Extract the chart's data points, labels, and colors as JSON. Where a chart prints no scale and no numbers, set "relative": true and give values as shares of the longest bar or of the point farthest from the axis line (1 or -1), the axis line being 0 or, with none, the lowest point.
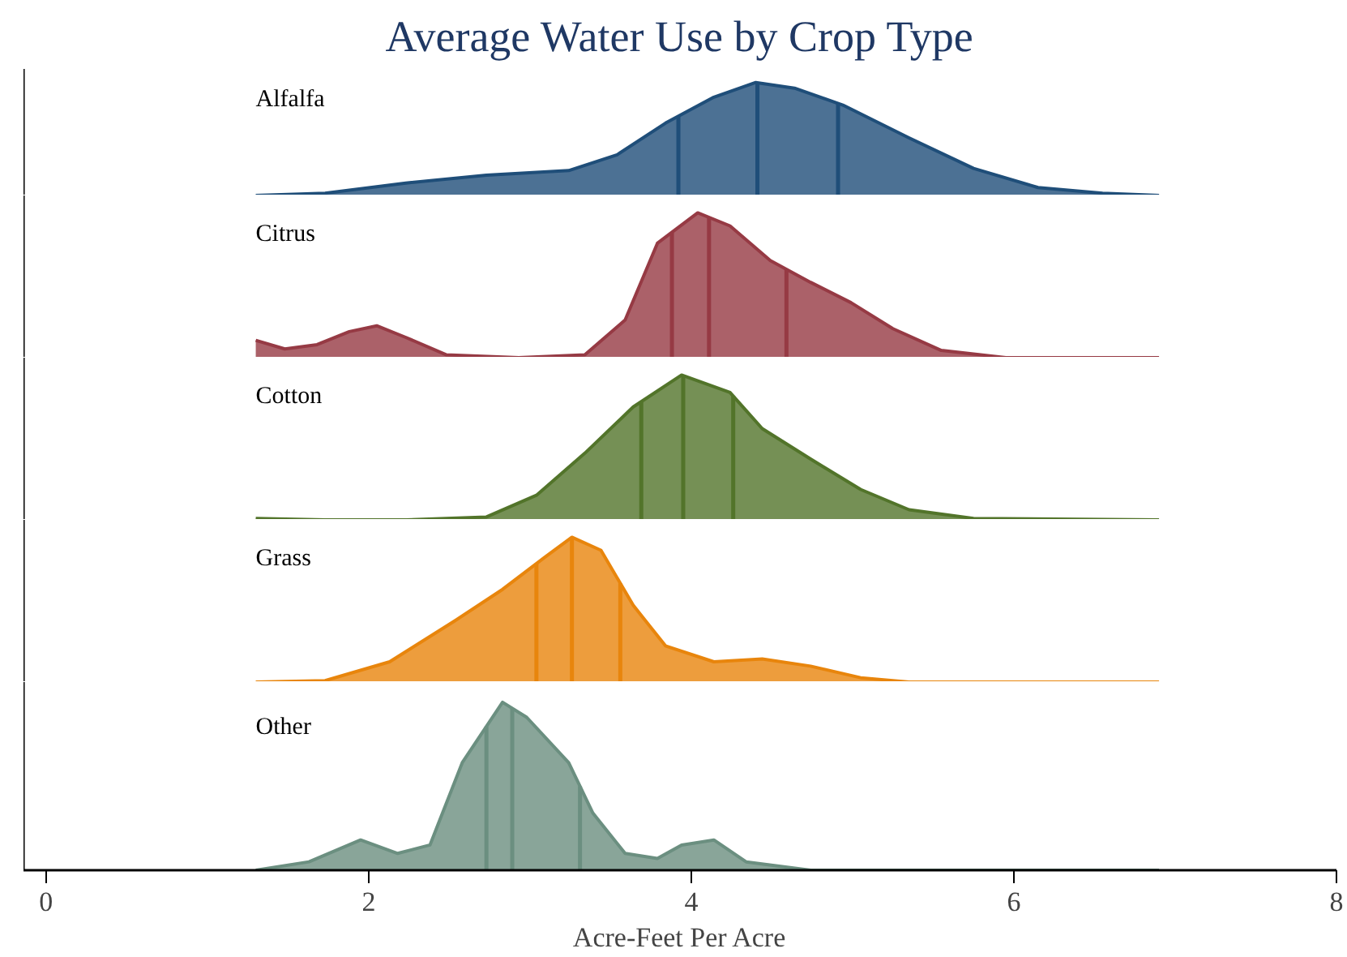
{
  "chart_data": [
    {
      "type": "area",
      "title": "Average Water Use by Crop Type",
      "relative": true,
      "xlim": [
        -0.14,
        8
      ],
      "xticks": [
        0,
        2,
        4,
        6,
        8
      ],
      "tick_labels": false,
      "series": [
        {
          "name": "Alfalfa",
          "color": "#1f4e79",
          "x": [
            1.3,
            1.73,
            2.23,
            2.73,
            3.24,
            3.54,
            3.84,
            4.14,
            4.4,
            4.64,
            4.94,
            5.35,
            5.75,
            6.15,
            6.55,
            6.9
          ],
          "values": [
            0,
            0.02,
            0.11,
            0.18,
            0.22,
            0.36,
            0.64,
            0.87,
            1.0,
            0.95,
            0.8,
            0.51,
            0.24,
            0.07,
            0.02,
            0
          ]
        }
      ],
      "ref_lines": [
        {
          "axis": "x",
          "value": 3.92,
          "color": "#1f4e79"
        },
        {
          "axis": "x",
          "value": 4.41,
          "color": "#1f4e79"
        },
        {
          "axis": "x",
          "value": 4.91,
          "color": "#1f4e79"
        }
      ]
    },
    {
      "type": "area",
      "relative": true,
      "xlim": [
        -0.14,
        8
      ],
      "xticks": [
        0,
        2,
        4,
        6,
        8
      ],
      "tick_labels": false,
      "series": [
        {
          "name": "Citrus",
          "color": "#963a44",
          "x": [
            1.3,
            1.48,
            1.68,
            1.88,
            2.05,
            2.23,
            2.48,
            2.93,
            3.34,
            3.59,
            3.79,
            4.04,
            4.24,
            4.49,
            4.74,
            4.99,
            5.25,
            5.55,
            5.95,
            6.9
          ],
          "values": [
            0.12,
            0.06,
            0.09,
            0.18,
            0.22,
            0.14,
            0.02,
            0,
            0.02,
            0.26,
            0.79,
            1.0,
            0.91,
            0.67,
            0.52,
            0.38,
            0.2,
            0.05,
            0,
            0
          ]
        }
      ],
      "ref_lines": [
        {
          "axis": "x",
          "value": 3.88,
          "color": "#963a44"
        },
        {
          "axis": "x",
          "value": 4.11,
          "color": "#963a44"
        },
        {
          "axis": "x",
          "value": 4.59,
          "color": "#963a44"
        }
      ]
    },
    {
      "type": "area",
      "relative": true,
      "xlim": [
        -0.14,
        8
      ],
      "xticks": [
        0,
        2,
        4,
        6,
        8
      ],
      "tick_labels": false,
      "series": [
        {
          "name": "Cotton",
          "color": "#52742a",
          "x": [
            1.3,
            1.73,
            2.23,
            2.73,
            3.04,
            3.34,
            3.64,
            3.94,
            4.24,
            4.44,
            4.74,
            5.05,
            5.35,
            5.75,
            6.9
          ],
          "values": [
            0.01,
            0,
            0,
            0.02,
            0.17,
            0.46,
            0.78,
            1.0,
            0.88,
            0.63,
            0.42,
            0.21,
            0.07,
            0.01,
            0
          ]
        }
      ],
      "ref_lines": [
        {
          "axis": "x",
          "value": 3.69,
          "color": "#52742a"
        },
        {
          "axis": "x",
          "value": 3.95,
          "color": "#52742a"
        },
        {
          "axis": "x",
          "value": 4.26,
          "color": "#52742a"
        }
      ]
    },
    {
      "type": "area",
      "relative": true,
      "xlim": [
        -0.14,
        8
      ],
      "xticks": [
        0,
        2,
        4,
        6,
        8
      ],
      "tick_labels": false,
      "series": [
        {
          "name": "Grass",
          "color": "#e8850c",
          "x": [
            1.3,
            1.73,
            2.13,
            2.53,
            2.83,
            3.09,
            3.26,
            3.44,
            3.64,
            3.84,
            4.14,
            4.44,
            4.74,
            5.05,
            5.35,
            6.9
          ],
          "values": [
            0,
            0.01,
            0.14,
            0.42,
            0.64,
            0.86,
            1.0,
            0.91,
            0.53,
            0.25,
            0.14,
            0.16,
            0.11,
            0.03,
            0,
            0
          ]
        }
      ],
      "ref_lines": [
        {
          "axis": "x",
          "value": 3.04,
          "color": "#e8850c"
        },
        {
          "axis": "x",
          "value": 3.26,
          "color": "#e8850c"
        },
        {
          "axis": "x",
          "value": 3.56,
          "color": "#e8850c"
        }
      ]
    },
    {
      "type": "area",
      "relative": true,
      "xlabel": "Acre-Feet Per Acre",
      "xlim": [
        -0.14,
        8
      ],
      "xticks": [
        0,
        2,
        4,
        6,
        8
      ],
      "tick_labels": "x",
      "series": [
        {
          "name": "Other",
          "color": "#6b8f80",
          "x": [
            1.3,
            1.63,
            1.95,
            2.18,
            2.38,
            2.58,
            2.83,
            2.98,
            3.24,
            3.39,
            3.59,
            3.79,
            3.94,
            4.14,
            4.34,
            4.74,
            6.9
          ],
          "values": [
            0,
            0.05,
            0.18,
            0.1,
            0.15,
            0.64,
            1.0,
            0.91,
            0.64,
            0.34,
            0.1,
            0.07,
            0.15,
            0.18,
            0.05,
            0,
            0
          ]
        }
      ],
      "ref_lines": [
        {
          "axis": "x",
          "value": 2.73,
          "color": "#6b8f80"
        },
        {
          "axis": "x",
          "value": 2.89,
          "color": "#6b8f80"
        },
        {
          "axis": "x",
          "value": 3.31,
          "color": "#6b8f80"
        }
      ]
    }
  ]
}
